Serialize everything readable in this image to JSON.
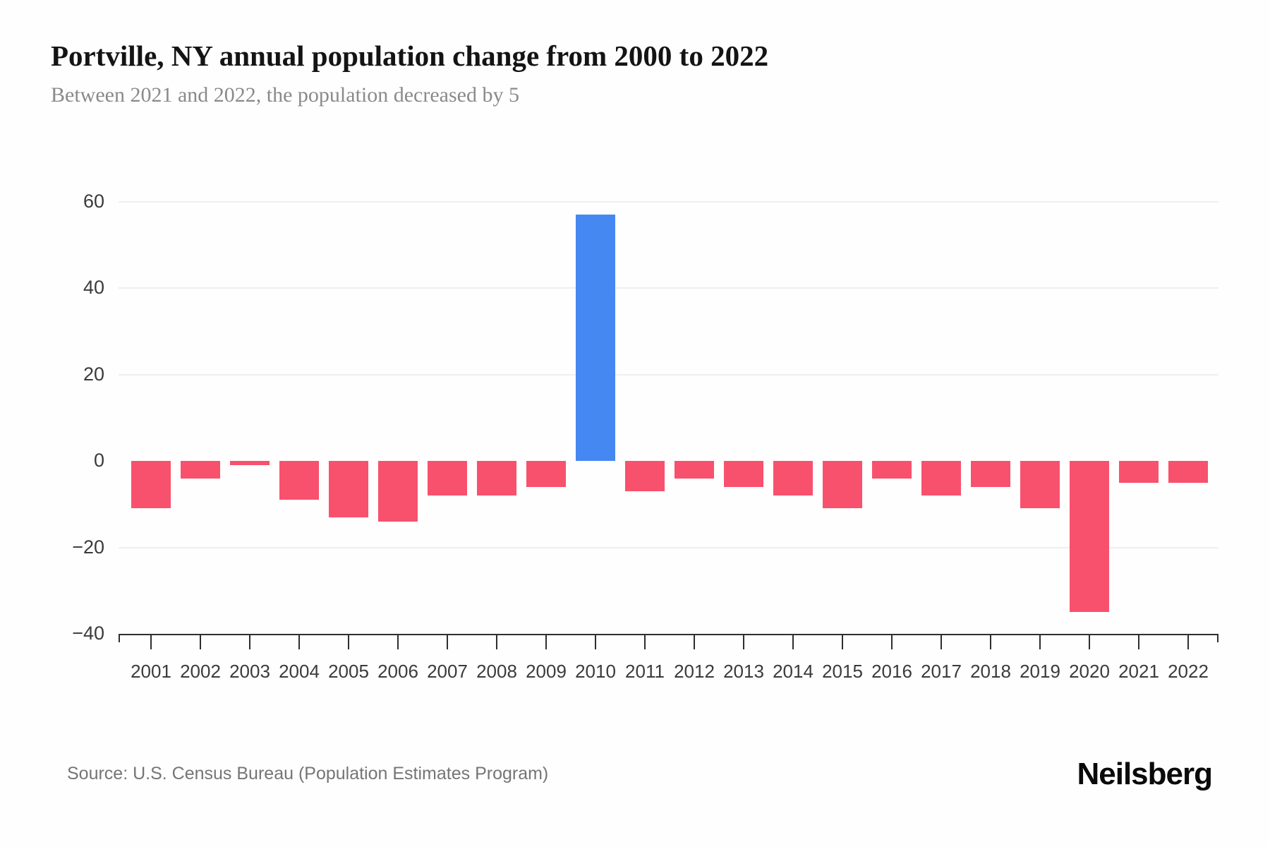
{
  "header": {
    "title": "Portville, NY annual population change from 2000 to 2022",
    "subtitle": "Between 2021 and 2022, the population decreased by 5"
  },
  "footer": {
    "source": "Source: U.S. Census Bureau (Population Estimates Program)",
    "brand": "Neilsberg"
  },
  "chart_data": {
    "type": "bar",
    "title": "Portville, NY annual population change from 2000 to 2022",
    "subtitle": "Between 2021 and 2022, the population decreased by 5",
    "xlabel": "",
    "ylabel": "",
    "legend": "none",
    "grid": "horizontal-light",
    "categories": [
      "2001",
      "2002",
      "2003",
      "2004",
      "2005",
      "2006",
      "2007",
      "2008",
      "2009",
      "2010",
      "2011",
      "2012",
      "2013",
      "2014",
      "2015",
      "2016",
      "2017",
      "2018",
      "2019",
      "2020",
      "2021",
      "2022"
    ],
    "values": [
      -11,
      -4,
      -1,
      -9,
      -13,
      -14,
      -8,
      -8,
      -6,
      57,
      -7,
      -4,
      -6,
      -8,
      -11,
      -4,
      -8,
      -6,
      -11,
      -35,
      -5,
      -5
    ],
    "highlight_category": "2010",
    "ylim": [
      -40,
      63
    ],
    "ytick_values": [
      60,
      40,
      20,
      0,
      -20,
      -40
    ],
    "ytick_labels": [
      "60",
      "40",
      "20",
      "0",
      "−20",
      "−40"
    ],
    "gridline_values": [
      60,
      40,
      20,
      -20
    ],
    "color_negative": "#F8516D",
    "color_positive": "#4688F1",
    "axis_color": "#2e2e2e",
    "background": "#fffefe"
  }
}
